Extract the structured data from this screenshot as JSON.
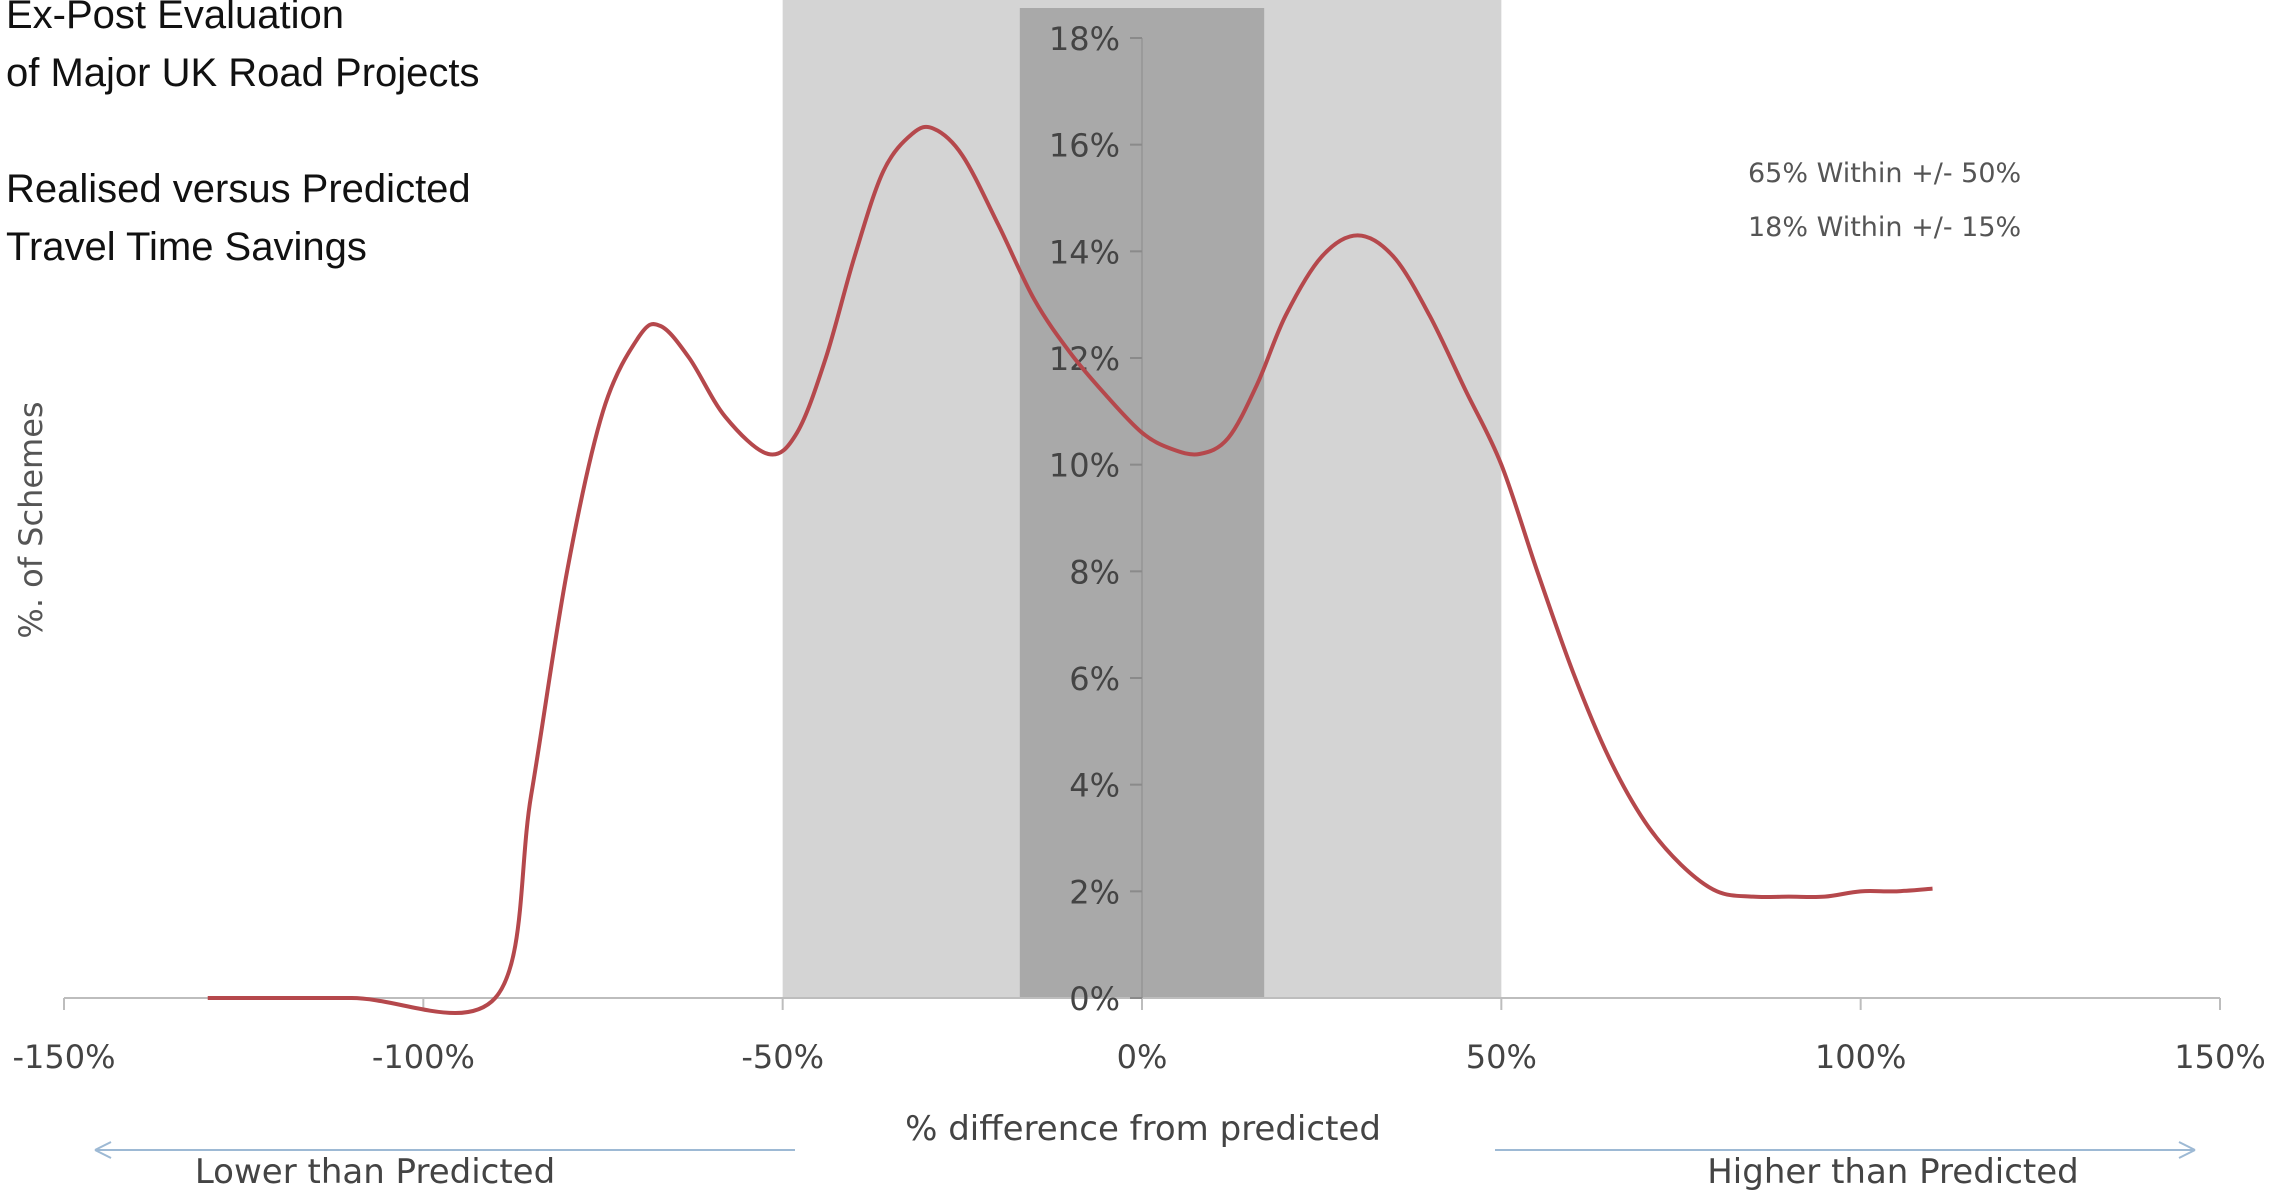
{
  "title": {
    "line1": "Ex-Post Evaluation",
    "line2": "of Major UK Road Projects",
    "line3": "Realised versus Predicted",
    "line4": "Travel Time Savings"
  },
  "annotations": {
    "within50": "65% Within +/- 50%",
    "within15": "18% Within +/- 15%"
  },
  "chart_data": {
    "type": "line",
    "xlabel": "% difference from predicted",
    "ylabel": "%. of Schemes",
    "xlim": [
      -150,
      150
    ],
    "ylim": [
      0,
      18
    ],
    "x_ticks": [
      -150,
      -100,
      -50,
      0,
      50,
      100,
      150
    ],
    "x_tick_labels": [
      "-150%",
      "-100%",
      "-50%",
      "0%",
      "50%",
      "100%",
      "150%"
    ],
    "y_ticks": [
      0,
      2,
      4,
      6,
      8,
      10,
      12,
      14,
      16,
      18
    ],
    "y_tick_labels": [
      "0%",
      "2%",
      "4%",
      "6%",
      "8%",
      "10%",
      "12%",
      "14%",
      "16%",
      "18%"
    ],
    "grid": false,
    "bands": [
      {
        "from": -50,
        "to": 50,
        "color": "#d4d4d4"
      },
      {
        "from": -17,
        "to": 17,
        "color": "#a9a9a9"
      }
    ],
    "series": [
      {
        "color": "#b5484c",
        "x": [
          -130,
          -110,
          -90,
          -85,
          -80,
          -75,
          -70,
          -67,
          -63,
          -58,
          -52,
          -48,
          -44,
          -40,
          -36,
          -32,
          -29,
          -25,
          -20,
          -15,
          -10,
          -5,
          0,
          4,
          8,
          12,
          16,
          20,
          25,
          30,
          35,
          40,
          45,
          50,
          55,
          60,
          65,
          70,
          75,
          80,
          85,
          90,
          95,
          100,
          105,
          110
        ],
        "y": [
          0,
          0,
          0,
          3.8,
          8.0,
          11.0,
          12.4,
          12.6,
          12.0,
          10.9,
          10.2,
          10.6,
          12.0,
          13.9,
          15.5,
          16.2,
          16.3,
          15.8,
          14.5,
          13.1,
          12.1,
          11.3,
          10.6,
          10.3,
          10.2,
          10.5,
          11.5,
          12.8,
          13.9,
          14.3,
          13.9,
          12.8,
          11.4,
          10.0,
          8.0,
          6.1,
          4.5,
          3.3,
          2.5,
          2.0,
          1.9,
          1.9,
          1.9,
          2.0,
          2.0,
          2.05
        ]
      }
    ],
    "arrows": {
      "left_label": "Lower than Predicted",
      "right_label": "Higher than Predicted"
    }
  }
}
